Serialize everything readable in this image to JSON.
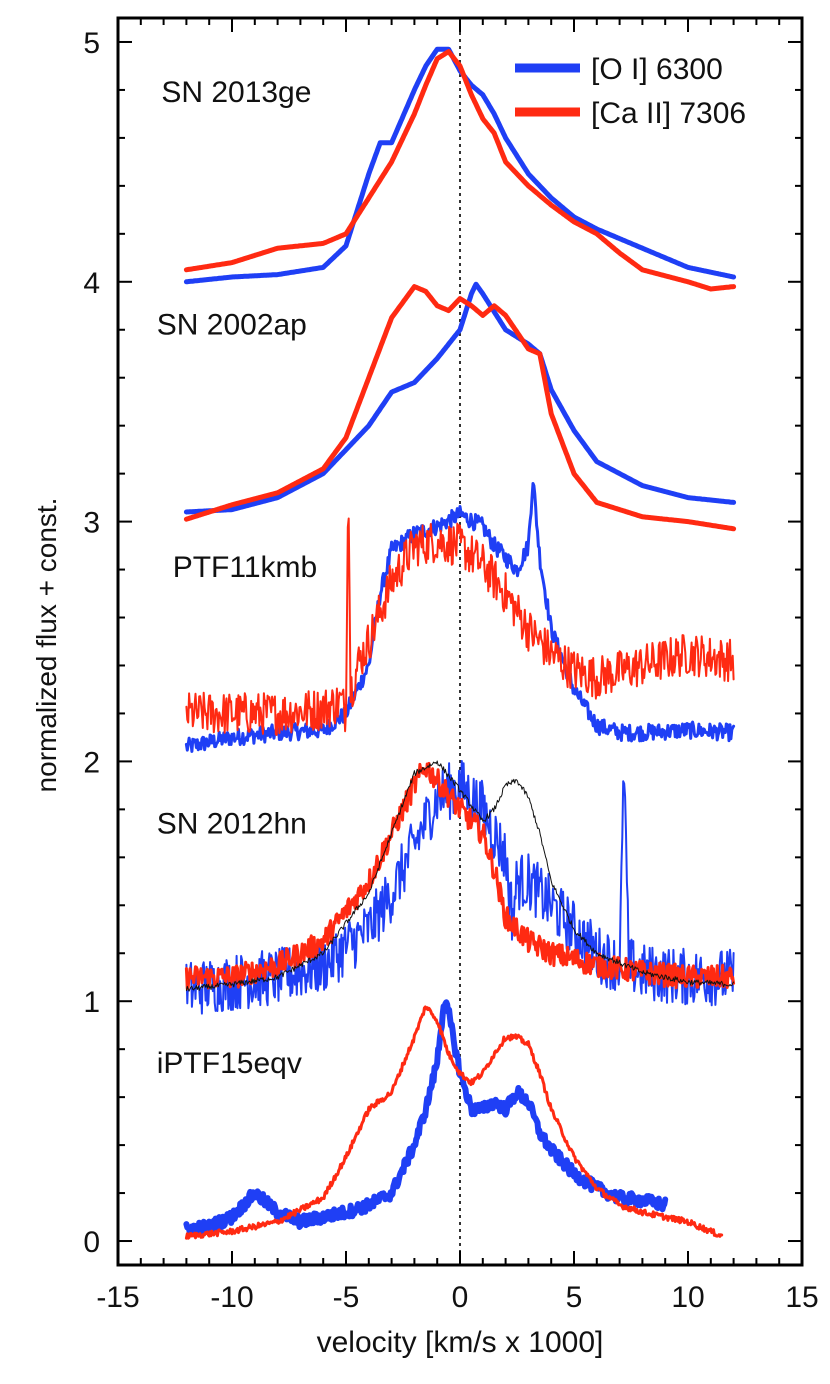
{
  "chart_data": {
    "type": "line",
    "title": "",
    "xlabel": "velocity [km/s x 1000]",
    "ylabel": "normalized flux + const.",
    "xlim": [
      -15,
      15
    ],
    "ylim": [
      -0.1,
      5.1
    ],
    "xticks": [
      -15,
      -10,
      -5,
      0,
      5,
      10,
      15
    ],
    "yticks": [
      0,
      1,
      2,
      3,
      4,
      5
    ],
    "x_minor_step": 1,
    "y_minor_step": 0.2,
    "zero_line": {
      "x": 0,
      "style": "dotted"
    },
    "legend": {
      "position": "top-right",
      "entries": [
        {
          "label": "[O I] 6300",
          "color": "#1f3ff5"
        },
        {
          "label": "[Ca II] 7306",
          "color": "#ff2a12"
        }
      ]
    },
    "objects": [
      {
        "name": "SN 2013ge",
        "series": [
          {
            "name": "[O I] 6300",
            "color": "#1f3ff5",
            "noise": 0,
            "x": [
              -12,
              -10,
              -8,
              -6,
              -5,
              -4,
              -3.5,
              -3,
              -2,
              -1.5,
              -1,
              -0.5,
              0,
              0.5,
              1,
              1.5,
              2,
              3,
              4,
              5,
              6,
              8,
              10,
              12
            ],
            "y": [
              4.0,
              4.02,
              4.03,
              4.06,
              4.15,
              4.45,
              4.58,
              4.58,
              4.8,
              4.9,
              4.97,
              4.97,
              4.88,
              4.82,
              4.78,
              4.7,
              4.6,
              4.45,
              4.35,
              4.27,
              4.22,
              4.14,
              4.06,
              4.02
            ]
          },
          {
            "name": "[Ca II] 7306",
            "color": "#ff2a12",
            "noise": 0,
            "x": [
              -12,
              -10,
              -8,
              -6,
              -5,
              -4,
              -3,
              -2,
              -1.5,
              -1,
              -0.5,
              0,
              0.5,
              1,
              1.5,
              2,
              3,
              4,
              5,
              6,
              7,
              8,
              10,
              11,
              12
            ],
            "y": [
              4.05,
              4.08,
              4.14,
              4.16,
              4.2,
              4.35,
              4.5,
              4.7,
              4.82,
              4.93,
              4.96,
              4.9,
              4.78,
              4.68,
              4.62,
              4.5,
              4.4,
              4.32,
              4.25,
              4.2,
              4.12,
              4.05,
              4.0,
              3.97,
              3.98
            ]
          }
        ]
      },
      {
        "name": "SN 2002ap",
        "series": [
          {
            "name": "[O I] 6300",
            "color": "#1f3ff5",
            "noise": 0,
            "x": [
              -12,
              -10,
              -8,
              -6,
              -4,
              -3,
              -2,
              -1,
              0,
              0.5,
              0.7,
              1,
              2,
              3,
              3.5,
              4,
              5,
              6,
              8,
              10,
              12
            ],
            "y": [
              3.04,
              3.05,
              3.1,
              3.2,
              3.4,
              3.54,
              3.58,
              3.68,
              3.8,
              3.95,
              3.99,
              3.95,
              3.8,
              3.74,
              3.7,
              3.55,
              3.38,
              3.25,
              3.15,
              3.1,
              3.08
            ]
          },
          {
            "name": "[Ca II] 7306",
            "color": "#ff2a12",
            "noise": 0,
            "x": [
              -12,
              -10,
              -8,
              -6,
              -5,
              -4,
              -3,
              -2,
              -1.5,
              -1,
              -0.5,
              0,
              0.5,
              1,
              1.5,
              2,
              3,
              3.5,
              4,
              5,
              6,
              8,
              10,
              12
            ],
            "y": [
              3.01,
              3.07,
              3.12,
              3.22,
              3.35,
              3.6,
              3.85,
              3.98,
              3.96,
              3.9,
              3.88,
              3.93,
              3.9,
              3.86,
              3.9,
              3.86,
              3.72,
              3.7,
              3.45,
              3.2,
              3.08,
              3.02,
              3.0,
              2.97
            ]
          }
        ]
      },
      {
        "name": "PTF11kmb",
        "series": [
          {
            "name": "[O I] 6300",
            "color": "#1f3ff5",
            "noise": 0.035,
            "x": [
              -12,
              -10,
              -8,
              -6,
              -5,
              -4,
              -3.5,
              -3,
              -2,
              -1,
              0,
              1,
              1.5,
              2,
              2.5,
              3,
              3.2,
              3.5,
              4,
              5,
              6,
              7,
              8,
              10,
              12
            ],
            "y": [
              2.06,
              2.1,
              2.12,
              2.13,
              2.2,
              2.4,
              2.7,
              2.88,
              2.95,
              2.98,
              3.03,
              2.98,
              2.9,
              2.85,
              2.8,
              2.9,
              3.18,
              2.85,
              2.55,
              2.3,
              2.15,
              2.12,
              2.12,
              2.13,
              2.12
            ]
          },
          {
            "name": "[Ca II] 7306",
            "color": "#ff2a12",
            "noise": 0.09,
            "x": [
              -12,
              -10,
              -8,
              -6,
              -5.2,
              -5,
              -4.9,
              -4.8,
              -4.6,
              -4.5,
              -4,
              -3,
              -2,
              -1,
              0,
              1,
              2,
              3,
              4,
              5,
              6,
              8,
              10,
              12
            ],
            "y": [
              2.2,
              2.2,
              2.2,
              2.22,
              2.25,
              2.2,
              3.28,
              2.3,
              2.35,
              2.4,
              2.5,
              2.75,
              2.9,
              2.92,
              2.9,
              2.82,
              2.7,
              2.55,
              2.45,
              2.38,
              2.35,
              2.4,
              2.45,
              2.42
            ]
          }
        ]
      },
      {
        "name": "SN 2012hn",
        "series": [
          {
            "name": "[O I] 6300",
            "color": "#1f3ff5",
            "noise": 0.12,
            "x": [
              -12,
              -10,
              -8,
              -6,
              -4,
              -3,
              -2,
              -1,
              0,
              1,
              2,
              2.3,
              2.5,
              3,
              4,
              5,
              6,
              7,
              7.2,
              7.4,
              8,
              10,
              12
            ],
            "y": [
              1.05,
              1.08,
              1.1,
              1.15,
              1.3,
              1.45,
              1.65,
              1.85,
              1.9,
              1.8,
              1.6,
              1.35,
              1.5,
              1.5,
              1.4,
              1.3,
              1.2,
              1.15,
              1.98,
              1.15,
              1.12,
              1.1,
              1.1
            ]
          },
          {
            "name": "[Ca II] 7306",
            "color": "#ff2a12",
            "noise": 0.05,
            "x": [
              -12,
              -10,
              -8,
              -6,
              -4,
              -3,
              -2,
              -1.5,
              -1,
              0,
              1,
              1.5,
              2,
              3,
              4,
              6,
              8,
              10,
              12
            ],
            "y": [
              1.1,
              1.1,
              1.15,
              1.25,
              1.5,
              1.7,
              1.9,
              1.98,
              1.92,
              1.8,
              1.7,
              1.55,
              1.35,
              1.25,
              1.2,
              1.15,
              1.12,
              1.1,
              1.1
            ]
          },
          {
            "name": "comparison",
            "color": "#111111",
            "noise": 0.012,
            "x": [
              -12,
              -10,
              -8,
              -6,
              -4,
              -3,
              -2,
              -1,
              0,
              1,
              1.5,
              2,
              2.5,
              3,
              3.5,
              4,
              5,
              6,
              8,
              10,
              12
            ],
            "y": [
              1.05,
              1.07,
              1.1,
              1.2,
              1.45,
              1.7,
              1.95,
              2.0,
              1.88,
              1.75,
              1.8,
              1.9,
              1.92,
              1.85,
              1.7,
              1.5,
              1.3,
              1.2,
              1.12,
              1.08,
              1.07
            ]
          }
        ]
      },
      {
        "name": "iPTF15eqv",
        "series": [
          {
            "name": "[O I] 6300",
            "color": "#1f3ff5",
            "noise": 0.025,
            "x": [
              -12,
              -11,
              -10,
              -9,
              -8,
              -7,
              -6,
              -5,
              -4,
              -3,
              -2.5,
              -2,
              -1.5,
              -1,
              -0.7,
              -0.5,
              0,
              0.5,
              1,
              1.5,
              2,
              2.5,
              3,
              3.5,
              4,
              5,
              6,
              7,
              8,
              9
            ],
            "y": [
              0.05,
              0.06,
              0.1,
              0.2,
              0.12,
              0.08,
              0.1,
              0.12,
              0.15,
              0.2,
              0.3,
              0.4,
              0.55,
              0.75,
              1.0,
              0.95,
              0.7,
              0.55,
              0.55,
              0.58,
              0.55,
              0.62,
              0.58,
              0.45,
              0.38,
              0.28,
              0.22,
              0.18,
              0.17,
              0.15
            ]
          },
          {
            "name": "[Ca II] 7306",
            "color": "#ff2a12",
            "noise": 0.012,
            "x": [
              -12,
              -10,
              -8,
              -6,
              -5,
              -4,
              -3,
              -2,
              -1.5,
              -1,
              -0.5,
              0,
              0.5,
              1,
              1.5,
              2,
              2.5,
              3,
              3.5,
              4,
              5,
              6,
              7,
              8,
              9,
              10,
              11,
              11.5
            ],
            "y": [
              0.02,
              0.04,
              0.08,
              0.18,
              0.35,
              0.55,
              0.62,
              0.85,
              0.98,
              0.92,
              0.78,
              0.7,
              0.66,
              0.7,
              0.78,
              0.85,
              0.85,
              0.82,
              0.7,
              0.55,
              0.35,
              0.22,
              0.15,
              0.12,
              0.1,
              0.08,
              0.04,
              0.02
            ]
          }
        ]
      }
    ]
  }
}
